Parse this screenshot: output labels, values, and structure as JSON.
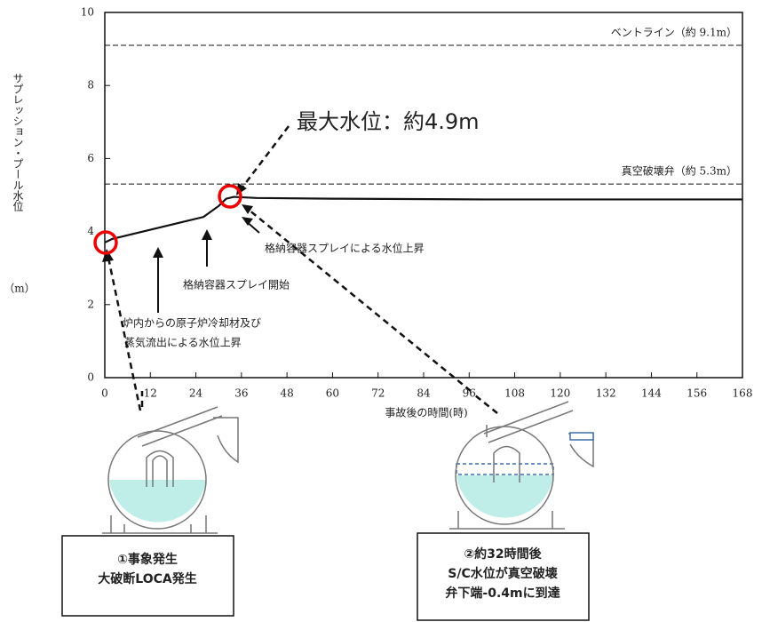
{
  "chart_data": {
    "type": "line",
    "y_label": "サプレッション・プール水位",
    "y_unit": "（m）",
    "x_label": "事故後の時間(時)",
    "x": [
      0,
      2,
      12,
      20,
      26,
      30,
      32,
      34,
      40,
      60,
      100,
      168
    ],
    "values": [
      3.7,
      3.8,
      4.05,
      4.25,
      4.4,
      4.7,
      4.9,
      4.95,
      4.92,
      4.9,
      4.88,
      4.88
    ],
    "color": "#111111",
    "xlim": [
      0,
      168
    ],
    "xticks": [
      0,
      12,
      24,
      36,
      48,
      60,
      72,
      84,
      96,
      108,
      120,
      132,
      144,
      156,
      168
    ],
    "ylim": [
      0,
      10
    ],
    "yticks": [
      0,
      2,
      4,
      6,
      8,
      10
    ],
    "reference_lines": [
      {
        "value": 9.1,
        "label": "ベントライン（約 9.1m）"
      },
      {
        "value": 5.3,
        "label": "真空破壊弁（約 5.3m）"
      }
    ],
    "annotations": {
      "max_level": "最大水位：約4.9m",
      "spray_rise": "格納容器スプレイによる水位上昇",
      "spray_start": "格納容器スプレイ開始",
      "coolant_rise": [
        "炉内からの原子炉冷却材及び",
        "蒸気流出による水位上昇"
      ]
    },
    "boxes": [
      {
        "lines": [
          "①事象発生",
          "大破断LOCA発生"
        ]
      },
      {
        "lines": [
          "②約32時間後",
          "S/C水位が真空破壊",
          "弁下端-0.4mに到達"
        ]
      }
    ]
  }
}
